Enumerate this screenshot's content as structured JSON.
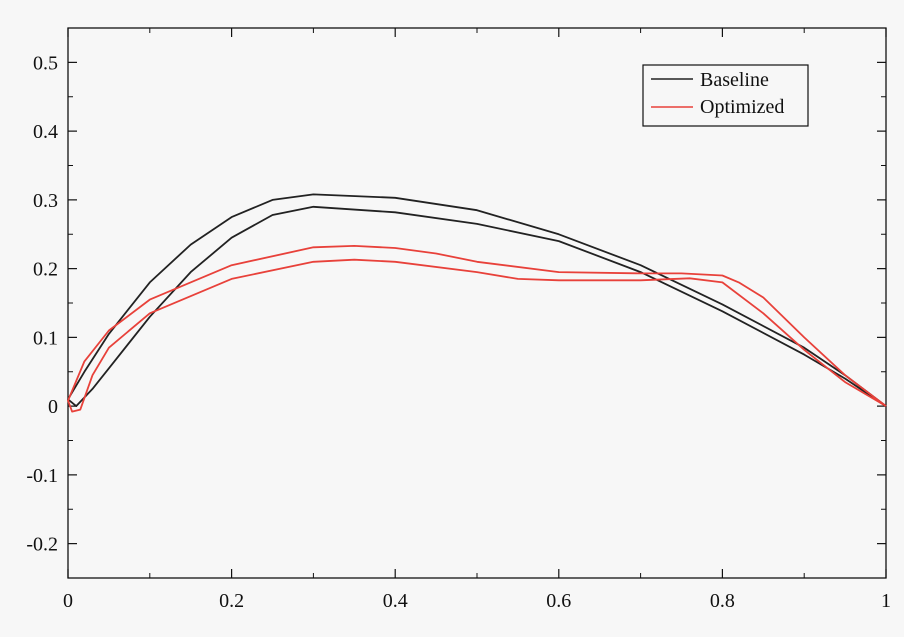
{
  "chart_data": {
    "type": "line",
    "title": "",
    "xlabel": "",
    "ylabel": "",
    "xlim": [
      0,
      1
    ],
    "ylim": [
      -0.25,
      0.55
    ],
    "grid": false,
    "legend_position": "top-right",
    "x_ticks": [
      {
        "value": 0,
        "label": "0"
      },
      {
        "value": 0.2,
        "label": "0.2"
      },
      {
        "value": 0.4,
        "label": "0.4"
      },
      {
        "value": 0.6,
        "label": "0.6"
      },
      {
        "value": 0.8,
        "label": "0.8"
      },
      {
        "value": 1,
        "label": "1"
      }
    ],
    "y_ticks": [
      {
        "value": -0.2,
        "label": "-0.2"
      },
      {
        "value": -0.1,
        "label": "-0.1"
      },
      {
        "value": 0,
        "label": "0"
      },
      {
        "value": 0.1,
        "label": "0.1"
      },
      {
        "value": 0.2,
        "label": "0.2"
      },
      {
        "value": 0.3,
        "label": "0.3"
      },
      {
        "value": 0.4,
        "label": "0.4"
      },
      {
        "value": 0.5,
        "label": "0.5"
      }
    ],
    "series": [
      {
        "name": "Baseline",
        "color": "#222222",
        "outline": [
          {
            "x": 1.0,
            "y": 0.0
          },
          {
            "x": 0.95,
            "y": 0.045
          },
          {
            "x": 0.9,
            "y": 0.085
          },
          {
            "x": 0.8,
            "y": 0.148
          },
          {
            "x": 0.7,
            "y": 0.205
          },
          {
            "x": 0.6,
            "y": 0.25
          },
          {
            "x": 0.5,
            "y": 0.285
          },
          {
            "x": 0.4,
            "y": 0.303
          },
          {
            "x": 0.3,
            "y": 0.308
          },
          {
            "x": 0.25,
            "y": 0.3
          },
          {
            "x": 0.2,
            "y": 0.275
          },
          {
            "x": 0.15,
            "y": 0.235
          },
          {
            "x": 0.1,
            "y": 0.18
          },
          {
            "x": 0.05,
            "y": 0.105
          },
          {
            "x": 0.02,
            "y": 0.05
          },
          {
            "x": 0.0,
            "y": 0.01
          },
          {
            "x": 0.01,
            "y": 0.0
          },
          {
            "x": 0.03,
            "y": 0.025
          },
          {
            "x": 0.05,
            "y": 0.055
          },
          {
            "x": 0.1,
            "y": 0.13
          },
          {
            "x": 0.15,
            "y": 0.195
          },
          {
            "x": 0.2,
            "y": 0.245
          },
          {
            "x": 0.25,
            "y": 0.278
          },
          {
            "x": 0.3,
            "y": 0.29
          },
          {
            "x": 0.4,
            "y": 0.282
          },
          {
            "x": 0.5,
            "y": 0.265
          },
          {
            "x": 0.6,
            "y": 0.24
          },
          {
            "x": 0.7,
            "y": 0.195
          },
          {
            "x": 0.8,
            "y": 0.138
          },
          {
            "x": 0.9,
            "y": 0.075
          },
          {
            "x": 0.95,
            "y": 0.04
          },
          {
            "x": 1.0,
            "y": 0.0
          }
        ]
      },
      {
        "name": "Optimized",
        "color": "#e8413a",
        "outline": [
          {
            "x": 1.0,
            "y": 0.0
          },
          {
            "x": 0.95,
            "y": 0.045
          },
          {
            "x": 0.9,
            "y": 0.1
          },
          {
            "x": 0.85,
            "y": 0.158
          },
          {
            "x": 0.82,
            "y": 0.18
          },
          {
            "x": 0.8,
            "y": 0.19
          },
          {
            "x": 0.75,
            "y": 0.193
          },
          {
            "x": 0.7,
            "y": 0.193
          },
          {
            "x": 0.6,
            "y": 0.195
          },
          {
            "x": 0.5,
            "y": 0.21
          },
          {
            "x": 0.45,
            "y": 0.222
          },
          {
            "x": 0.4,
            "y": 0.23
          },
          {
            "x": 0.35,
            "y": 0.233
          },
          {
            "x": 0.3,
            "y": 0.231
          },
          {
            "x": 0.2,
            "y": 0.205
          },
          {
            "x": 0.1,
            "y": 0.155
          },
          {
            "x": 0.05,
            "y": 0.11
          },
          {
            "x": 0.02,
            "y": 0.065
          },
          {
            "x": 0.0,
            "y": 0.008
          },
          {
            "x": 0.005,
            "y": -0.008
          },
          {
            "x": 0.015,
            "y": -0.005
          },
          {
            "x": 0.03,
            "y": 0.045
          },
          {
            "x": 0.05,
            "y": 0.085
          },
          {
            "x": 0.1,
            "y": 0.135
          },
          {
            "x": 0.2,
            "y": 0.185
          },
          {
            "x": 0.3,
            "y": 0.21
          },
          {
            "x": 0.35,
            "y": 0.213
          },
          {
            "x": 0.4,
            "y": 0.21
          },
          {
            "x": 0.5,
            "y": 0.195
          },
          {
            "x": 0.55,
            "y": 0.185
          },
          {
            "x": 0.6,
            "y": 0.183
          },
          {
            "x": 0.7,
            "y": 0.183
          },
          {
            "x": 0.76,
            "y": 0.186
          },
          {
            "x": 0.8,
            "y": 0.18
          },
          {
            "x": 0.85,
            "y": 0.135
          },
          {
            "x": 0.9,
            "y": 0.082
          },
          {
            "x": 0.95,
            "y": 0.035
          },
          {
            "x": 1.0,
            "y": 0.0
          }
        ]
      }
    ]
  }
}
